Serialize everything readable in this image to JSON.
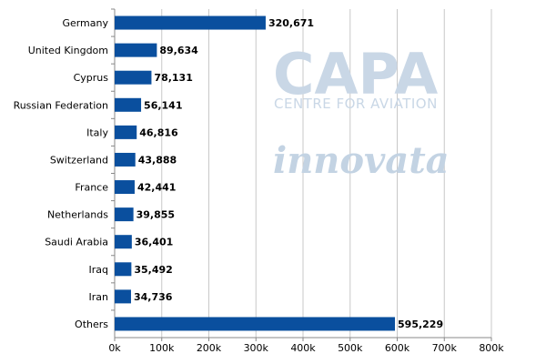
{
  "chart_data": {
    "type": "bar",
    "orientation": "horizontal",
    "categories": [
      "Germany",
      "United Kingdom",
      "Cyprus",
      "Russian Federation",
      "Italy",
      "Switzerland",
      "France",
      "Netherlands",
      "Saudi Arabia",
      "Iraq",
      "Iran",
      "Others"
    ],
    "values": [
      320671,
      89634,
      78131,
      56141,
      46816,
      43888,
      42441,
      39855,
      36401,
      35492,
      34736,
      595229
    ],
    "value_labels": [
      "320,671",
      "89,634",
      "78,131",
      "56,141",
      "46,816",
      "43,888",
      "42,441",
      "39,855",
      "36,401",
      "35,492",
      "34,736",
      "595,229"
    ],
    "x_ticks": [
      "0k",
      "100k",
      "200k",
      "300k",
      "400k",
      "500k",
      "600k",
      "700k",
      "800k"
    ],
    "xlim": [
      0,
      800000
    ],
    "grid": true,
    "bar_color": "#0a4f9e"
  },
  "watermark": {
    "brand": "CAPA",
    "subtitle": "CENTRE FOR AVIATION",
    "partner": "innovata"
  }
}
